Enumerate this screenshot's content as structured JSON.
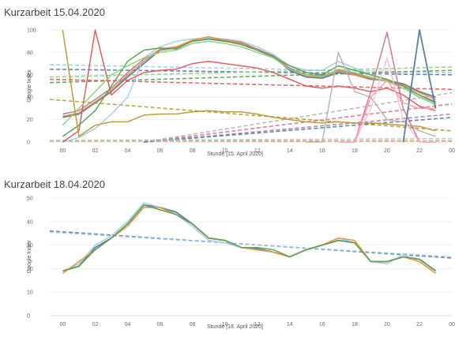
{
  "chart_data": [
    {
      "type": "line",
      "title": "Kurzarbeit 15.04.2020",
      "xlabel": "Stunde [15. April 2020]",
      "ylabel": "Google Index",
      "ylim": [
        0,
        100
      ],
      "xlim": [
        -0.8,
        24
      ],
      "yticks": [
        0,
        20,
        40,
        60,
        80,
        100
      ],
      "xticks": [
        "00",
        "02",
        "04",
        "06",
        "08",
        "10",
        "12",
        "14",
        "16",
        "18",
        "20",
        "22",
        "00"
      ],
      "grid": true,
      "series": [
        {
          "color": "#4e79a7",
          "width": 1.8,
          "x": [
            0,
            1,
            2,
            3,
            4,
            5,
            6,
            7,
            8,
            9,
            10,
            11,
            12,
            13,
            14,
            15,
            16,
            17,
            18,
            19,
            20,
            21,
            22,
            23
          ],
          "values": [
            22,
            25,
            35,
            45,
            58,
            70,
            82,
            84,
            90,
            92,
            90,
            88,
            82,
            76,
            64,
            58,
            57,
            62,
            60,
            56,
            55,
            52,
            45,
            40
          ]
        },
        {
          "color": "#a0cbe8",
          "width": 1.5,
          "x": [
            0,
            1,
            2,
            3,
            4,
            5,
            6,
            7,
            8,
            9,
            10,
            11,
            12,
            13,
            14,
            15,
            16,
            17,
            18,
            19,
            20,
            21,
            22,
            23
          ],
          "values": [
            0,
            4,
            12,
            25,
            40,
            75,
            85,
            90,
            92,
            93,
            92,
            90,
            85,
            78,
            68,
            64,
            64,
            72,
            66,
            60,
            55,
            50,
            40,
            35
          ]
        },
        {
          "color": "#b07aa1",
          "width": 1.5,
          "x": [
            0,
            1,
            2,
            3,
            4,
            5,
            6,
            7,
            8,
            9,
            10,
            11,
            12,
            13,
            14,
            15,
            16,
            17,
            18,
            19,
            20,
            21,
            22,
            23
          ],
          "values": [
            25,
            28,
            38,
            48,
            62,
            74,
            82,
            84,
            90,
            92,
            91,
            89,
            83,
            77,
            66,
            60,
            59,
            64,
            61,
            57,
            54,
            50,
            42,
            36
          ]
        },
        {
          "color": "#f28e2b",
          "width": 1.5,
          "x": [
            0,
            1,
            2,
            3,
            4,
            5,
            6,
            7,
            8,
            9,
            10,
            11,
            12,
            13,
            14,
            15,
            16,
            17,
            18,
            19,
            20,
            21,
            22,
            23
          ],
          "values": [
            23,
            26,
            36,
            46,
            60,
            72,
            83,
            85,
            91,
            94,
            91,
            88,
            82,
            76,
            65,
            59,
            58,
            63,
            60,
            57,
            55,
            51,
            44,
            38
          ]
        },
        {
          "color": "#e15759",
          "width": 1.5,
          "x": [
            0,
            1,
            2,
            3,
            4,
            5,
            6,
            7,
            8,
            9,
            10,
            11,
            12,
            13,
            14,
            15,
            16,
            17,
            18,
            19,
            20,
            21,
            22,
            23
          ],
          "values": [
            0,
            10,
            100,
            42,
            55,
            62,
            64,
            65,
            70,
            72,
            70,
            68,
            66,
            62,
            56,
            50,
            48,
            50,
            48,
            45,
            48,
            42,
            32,
            28
          ]
        },
        {
          "color": "#59a14f",
          "width": 1.5,
          "x": [
            0,
            1,
            2,
            3,
            4,
            5,
            6,
            7,
            8,
            9,
            10,
            11,
            12,
            13,
            14,
            15,
            16,
            17,
            18,
            19,
            20,
            21,
            22,
            23
          ],
          "values": [
            5,
            15,
            28,
            50,
            72,
            82,
            84,
            83,
            90,
            92,
            90,
            87,
            82,
            76,
            68,
            62,
            60,
            68,
            64,
            60,
            56,
            50,
            42,
            35
          ]
        },
        {
          "color": "#8cd17d",
          "width": 1.5,
          "x": [
            0,
            1,
            2,
            3,
            4,
            5,
            6,
            7,
            8,
            9,
            10,
            11,
            12,
            13,
            14,
            15,
            16,
            17,
            18,
            19,
            20,
            21,
            22,
            23
          ],
          "values": [
            15,
            30,
            45,
            60,
            68,
            75,
            80,
            82,
            88,
            90,
            88,
            85,
            80,
            75,
            65,
            60,
            58,
            65,
            62,
            58,
            54,
            48,
            40,
            33
          ]
        },
        {
          "color": "#b6992d",
          "width": 1.5,
          "x": [
            0,
            1,
            2,
            3,
            4,
            5,
            6,
            7,
            8,
            9,
            10,
            11,
            12,
            13,
            14,
            15,
            16,
            17,
            18,
            19,
            20,
            21,
            22,
            23
          ],
          "values": [
            100,
            5,
            15,
            18,
            18,
            24,
            25,
            25,
            27,
            28,
            27,
            27,
            25,
            22,
            20,
            18,
            17,
            18,
            17,
            17,
            16,
            15,
            14,
            10
          ]
        },
        {
          "color": "#bab0ac",
          "width": 1.5,
          "x": [
            15,
            16,
            17,
            18,
            19,
            20,
            21,
            22,
            23
          ],
          "values": [
            0,
            0,
            80,
            45,
            40,
            20,
            18,
            10,
            5
          ]
        },
        {
          "color": "#d37295",
          "width": 1.5,
          "x": [
            17,
            18,
            19,
            20,
            21,
            22,
            23
          ],
          "values": [
            0,
            0,
            45,
            98,
            30,
            0,
            0
          ]
        },
        {
          "color": "#fabfd2",
          "width": 1.5,
          "x": [
            17,
            18,
            19,
            20,
            21,
            22,
            23
          ],
          "values": [
            0,
            0,
            30,
            75,
            20,
            0,
            0
          ]
        },
        {
          "color": "#4e79a7",
          "width": 1.8,
          "x": [
            21,
            22,
            23
          ],
          "values": [
            0,
            100,
            30
          ]
        },
        {
          "color": "#ff9da7",
          "width": 1.5,
          "x": [
            18,
            19,
            20,
            21,
            22,
            23
          ],
          "values": [
            0,
            40,
            55,
            35,
            30,
            30
          ]
        }
      ],
      "trendlines": [
        {
          "color": "#a0cbe8",
          "x": [
            -0.8,
            24
          ],
          "values": [
            69,
            62
          ]
        },
        {
          "color": "#4e79a7",
          "x": [
            -0.8,
            24
          ],
          "values": [
            65,
            60
          ]
        },
        {
          "color": "#8cd17d",
          "x": [
            -0.8,
            24
          ],
          "values": [
            58,
            67
          ]
        },
        {
          "color": "#59a14f",
          "x": [
            -0.8,
            24
          ],
          "values": [
            53,
            64
          ]
        },
        {
          "color": "#e15759",
          "x": [
            -0.8,
            24
          ],
          "values": [
            56,
            47
          ]
        },
        {
          "color": "#b6992d",
          "x": [
            -0.8,
            24
          ],
          "values": [
            38,
            10
          ]
        },
        {
          "color": "#bab0ac",
          "x": [
            5,
            24
          ],
          "values": [
            0,
            44
          ]
        },
        {
          "color": "#d37295",
          "x": [
            5,
            24
          ],
          "values": [
            0,
            34
          ]
        },
        {
          "color": "#b07aa1",
          "x": [
            5,
            24
          ],
          "values": [
            0,
            25
          ]
        },
        {
          "color": "#4e79a7",
          "x": [
            5,
            24
          ],
          "values": [
            0,
            22
          ]
        },
        {
          "color": "#f28e2b",
          "x": [
            -0.8,
            24
          ],
          "values": [
            1,
            1
          ]
        },
        {
          "color": "#a0cbe8",
          "x": [
            -0.8,
            24
          ],
          "values": [
            1.5,
            3
          ]
        }
      ]
    },
    {
      "type": "line",
      "title": "Kurzarbeit 18.04.2020",
      "xlabel": "Stunde [18. April 2020]",
      "ylabel": "Google Index",
      "ylim": [
        0,
        50
      ],
      "xlim": [
        -0.8,
        24
      ],
      "yticks": [
        0,
        10,
        20,
        30,
        40,
        50
      ],
      "xticks": [
        "00",
        "02",
        "04",
        "06",
        "08",
        "10",
        "12",
        "14",
        "16",
        "18",
        "20",
        "22",
        "00"
      ],
      "grid": true,
      "series": [
        {
          "color": "#4e79a7",
          "width": 1.8,
          "x": [
            0,
            1,
            2,
            3,
            4,
            5,
            6,
            7,
            8,
            9,
            10,
            11,
            12,
            13,
            14,
            15,
            16,
            17,
            18,
            19,
            20,
            21,
            22,
            23
          ],
          "values": [
            19,
            21,
            29,
            33,
            39,
            47,
            46,
            44,
            39,
            33,
            32,
            29,
            28.5,
            27,
            25,
            28,
            30,
            32,
            31,
            23,
            23,
            25,
            24,
            19
          ]
        },
        {
          "color": "#a0cbe8",
          "width": 1.5,
          "x": [
            0,
            1,
            2,
            3,
            4,
            5,
            6,
            7,
            8,
            9,
            10,
            11,
            12,
            13,
            14,
            15,
            16,
            17,
            18,
            19,
            20,
            21,
            22,
            23
          ],
          "values": [
            19,
            22,
            30,
            34,
            40,
            48,
            46,
            43,
            38,
            32,
            31,
            29,
            28,
            27,
            25,
            28,
            30,
            33,
            31,
            23,
            22,
            26,
            23,
            18
          ]
        },
        {
          "color": "#f28e2b",
          "width": 1.5,
          "x": [
            0,
            1,
            2,
            3,
            4,
            5,
            6,
            7,
            8,
            9,
            10,
            11,
            12,
            13,
            14,
            15,
            16,
            17,
            18,
            19,
            20,
            21,
            22,
            23
          ],
          "values": [
            18,
            23,
            28,
            33,
            38,
            46,
            46,
            43,
            39,
            33,
            32,
            29,
            28,
            27,
            25,
            28,
            30,
            33,
            32,
            23,
            23,
            25,
            23,
            18
          ]
        },
        {
          "color": "#59a14f",
          "width": 1.5,
          "x": [
            0,
            1,
            2,
            3,
            4,
            5,
            6,
            7,
            8,
            9,
            10,
            11,
            12,
            13,
            14,
            15,
            16,
            17,
            18,
            19,
            20,
            21,
            22,
            23
          ],
          "values": [
            19,
            21,
            28,
            33,
            39,
            47,
            45,
            43,
            39,
            33,
            32,
            29,
            29,
            28,
            25,
            28,
            30,
            32,
            31,
            23,
            23,
            25,
            24,
            19
          ]
        }
      ],
      "trendlines": [
        {
          "color": "#4e79a7",
          "x": [
            -0.8,
            24
          ],
          "values": [
            36,
            24.5
          ]
        },
        {
          "color": "#a0cbe8",
          "x": [
            -0.8,
            24
          ],
          "values": [
            35.5,
            25
          ]
        }
      ]
    }
  ]
}
